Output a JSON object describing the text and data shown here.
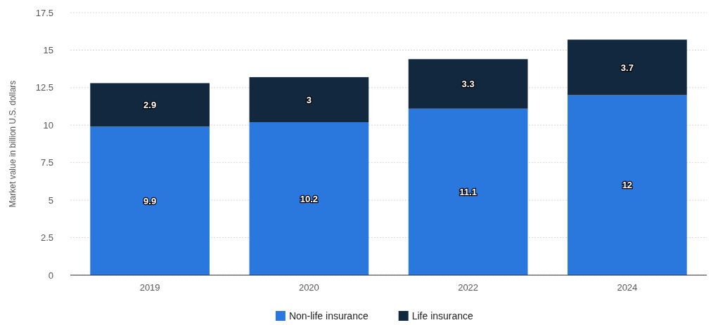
{
  "chart_data": {
    "type": "bar",
    "ylabel": "Market value in billion U.S. dollars",
    "categories": [
      "2019",
      "2020",
      "2022",
      "2024"
    ],
    "series": [
      {
        "name": "Non-life insurance",
        "color": "#2a77dd",
        "values": [
          9.9,
          10.2,
          11.1,
          12
        ]
      },
      {
        "name": "Life insurance",
        "color": "#12283f",
        "values": [
          2.9,
          3,
          3.3,
          3.7
        ]
      }
    ],
    "stacked": true,
    "ylim": [
      0,
      17.5
    ],
    "yticks": [
      0,
      2.5,
      5,
      7.5,
      10,
      12.5,
      15,
      17.5
    ],
    "grid": "y",
    "legend": "bottom",
    "data_labels": true
  }
}
